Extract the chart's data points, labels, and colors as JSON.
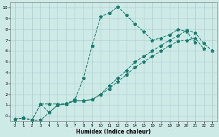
{
  "title": "",
  "xlabel": "Humidex (Indice chaleur)",
  "background_color": "#ceeae7",
  "grid_color": "#aacccc",
  "line_color": "#1a7a6e",
  "xlim": [
    -0.5,
    23.5
  ],
  "ylim": [
    -0.5,
    10.5
  ],
  "xticks": [
    0,
    1,
    2,
    3,
    4,
    5,
    6,
    7,
    8,
    9,
    10,
    11,
    12,
    13,
    14,
    15,
    16,
    17,
    18,
    19,
    20,
    21,
    22,
    23
  ],
  "yticks": [
    0,
    1,
    2,
    3,
    4,
    5,
    6,
    7,
    8,
    9,
    10
  ],
  "series1_x": [
    0,
    1,
    2,
    3,
    4,
    5,
    6,
    7,
    8,
    9,
    10,
    11,
    12,
    13,
    14,
    15,
    16,
    17,
    18,
    19,
    20,
    21
  ],
  "series1_y": [
    -0.3,
    -0.2,
    -0.4,
    1.1,
    1.1,
    1.1,
    1.15,
    1.5,
    3.5,
    6.5,
    9.2,
    9.5,
    10.1,
    9.3,
    8.5,
    7.8,
    7.0,
    7.2,
    7.5,
    8.0,
    7.8,
    6.8
  ],
  "series2_x": [
    0,
    1,
    2,
    3,
    4,
    5,
    6,
    7,
    8,
    9,
    10,
    11,
    12,
    13,
    14,
    15,
    16,
    17,
    18,
    19,
    20,
    21,
    22
  ],
  "series2_y": [
    -0.3,
    -0.2,
    -0.4,
    1.1,
    0.3,
    1.0,
    1.1,
    1.4,
    1.4,
    1.5,
    2.0,
    2.5,
    3.2,
    3.8,
    4.5,
    5.0,
    5.5,
    6.0,
    6.5,
    6.9,
    7.0,
    7.2,
    6.2
  ],
  "series3_x": [
    0,
    1,
    2,
    3,
    4,
    5,
    6,
    7,
    8,
    9,
    10,
    11,
    12,
    13,
    14,
    15,
    16,
    17,
    18,
    19,
    20,
    21,
    22,
    23
  ],
  "series3_y": [
    -0.3,
    -0.2,
    -0.4,
    -0.4,
    0.3,
    1.0,
    1.1,
    1.4,
    1.4,
    1.5,
    2.0,
    2.8,
    3.5,
    4.2,
    5.0,
    5.5,
    6.0,
    6.5,
    7.0,
    7.4,
    7.9,
    7.7,
    6.7,
    6.0
  ]
}
